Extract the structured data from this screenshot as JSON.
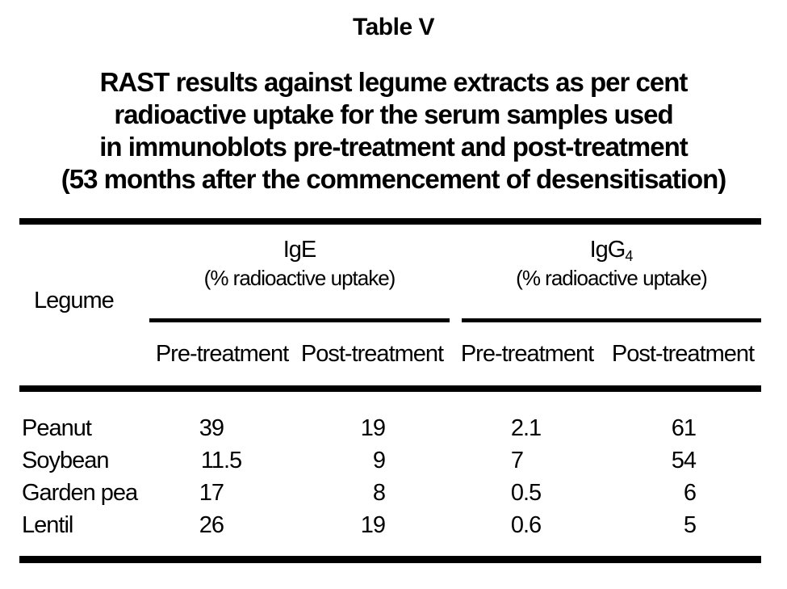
{
  "page": {
    "background_color": "#ffffff",
    "text_color": "#000000",
    "rule_color": "#000000"
  },
  "title": "Table V",
  "caption_lines": [
    "RAST results against legume extracts as per cent",
    "radioactive uptake for the serum samples used",
    "in immunoblots pre-treatment and post-treatment",
    "(53 months after the commencement of desensitisation)"
  ],
  "table": {
    "row_header_label": "Legume",
    "groups": [
      {
        "name": "IgE",
        "subscript": "",
        "unit_line": "(% radioactive uptake)"
      },
      {
        "name": "IgG",
        "subscript": "4",
        "unit_line": "(% radioactive uptake)"
      }
    ],
    "column_headers": [
      "Pre-treatment",
      "Post-treatment",
      "Pre-treatment",
      "Post-treatment"
    ],
    "rows": [
      {
        "legume": "Peanut",
        "values": [
          "39",
          "19",
          "2.1",
          "61"
        ]
      },
      {
        "legume": "Soybean",
        "values": [
          "11.5",
          "9",
          "7",
          "54"
        ]
      },
      {
        "legume": "Garden pea",
        "values": [
          "17",
          "8",
          "0.5",
          "6"
        ]
      },
      {
        "legume": "Lentil",
        "values": [
          "26",
          "19",
          "0.6",
          "5"
        ]
      }
    ]
  }
}
